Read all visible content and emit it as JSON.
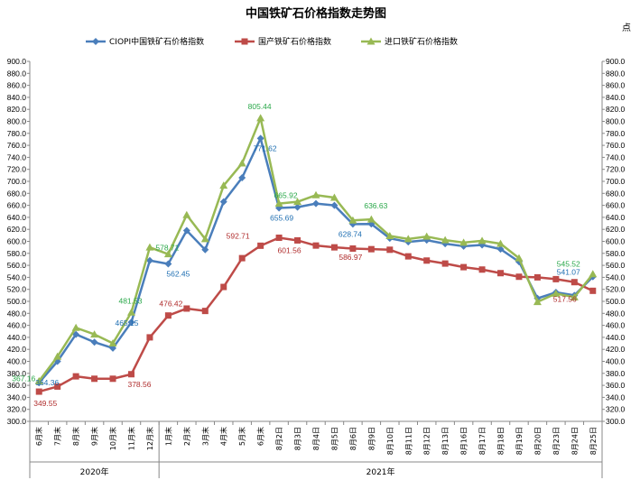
{
  "chart_data": {
    "type": "line",
    "title": "中国铁矿石价格指数走势图",
    "unit": "点",
    "ylim": [
      300,
      900
    ],
    "ytick_step": 20,
    "grid": false,
    "legend_position": "top",
    "categories": [
      "6月末",
      "7月末",
      "8月末",
      "9月末",
      "10月末",
      "11月末",
      "12月末",
      "1月末",
      "2月末",
      "3月末",
      "4月末",
      "5月末",
      "6月末",
      "8月2日",
      "8月3日",
      "8月4日",
      "8月5日",
      "8月6日",
      "8月9日",
      "8月10日",
      "8月11日",
      "8月12日",
      "8月13日",
      "8月16日",
      "8月17日",
      "8月18日",
      "8月19日",
      "8月20日",
      "8月23日",
      "8月24日",
      "8月25日"
    ],
    "year_groups": [
      {
        "label": "2020年",
        "start": 0,
        "end": 6
      },
      {
        "label": "2021年",
        "start": 7,
        "end": 30
      }
    ],
    "series": [
      {
        "name": "CIOPI中国铁矿石价格指数",
        "color": "#4a7ebb",
        "marker": "diamond",
        "values": [
          364.36,
          400,
          445,
          432,
          422,
          465.15,
          568,
          562.45,
          618,
          586,
          666,
          706,
          771.62,
          655.69,
          657,
          663,
          660,
          628.74,
          629,
          605,
          599,
          602,
          596,
          592,
          594,
          587,
          566,
          505,
          515,
          510,
          541.07
        ]
      },
      {
        "name": "国产铁矿石价格指数",
        "color": "#be4b48",
        "marker": "square",
        "values": [
          349.55,
          358,
          375,
          371,
          371,
          378.56,
          440,
          476.42,
          488,
          484,
          524,
          572,
          592.71,
          606,
          601.56,
          593,
          590,
          588,
          586.97,
          586,
          575,
          568,
          563,
          557,
          553,
          547,
          541,
          540,
          537,
          532,
          517.56
        ]
      },
      {
        "name": "进口铁矿石价格指数",
        "color": "#98b954",
        "marker": "triangle",
        "values": [
          367.16,
          408,
          456,
          445,
          430,
          481.53,
          590,
          578.71,
          644,
          604,
          693,
          730,
          805.44,
          663,
          665.92,
          677,
          673,
          635,
          636.63,
          609,
          604,
          608,
          602,
          598,
          601,
          596,
          572,
          499,
          513,
          507,
          545.52
        ]
      }
    ],
    "data_labels": [
      {
        "series": 0,
        "index": 0,
        "text": "364.36"
      },
      {
        "series": 0,
        "index": 5,
        "text": "465.15"
      },
      {
        "series": 0,
        "index": 7,
        "text": "562.45"
      },
      {
        "series": 0,
        "index": 12,
        "text": "771.62"
      },
      {
        "series": 0,
        "index": 13,
        "text": "655.69"
      },
      {
        "series": 0,
        "index": 17,
        "text": "628.74"
      },
      {
        "series": 0,
        "index": 30,
        "text": "541.07"
      },
      {
        "series": 1,
        "index": 0,
        "text": "349.55"
      },
      {
        "series": 1,
        "index": 5,
        "text": "378.56"
      },
      {
        "series": 1,
        "index": 7,
        "text": "476.42"
      },
      {
        "series": 1,
        "index": 12,
        "text": "592.71"
      },
      {
        "series": 1,
        "index": 14,
        "text": "601.56"
      },
      {
        "series": 1,
        "index": 18,
        "text": "586.97"
      },
      {
        "series": 1,
        "index": 30,
        "text": "517.56"
      },
      {
        "series": 2,
        "index": 0,
        "text": "367.16"
      },
      {
        "series": 2,
        "index": 5,
        "text": "481.53"
      },
      {
        "series": 2,
        "index": 7,
        "text": "578.71"
      },
      {
        "series": 2,
        "index": 12,
        "text": "805.44"
      },
      {
        "series": 2,
        "index": 14,
        "text": "665.92"
      },
      {
        "series": 2,
        "index": 18,
        "text": "636.63"
      },
      {
        "series": 2,
        "index": 30,
        "text": "545.52"
      }
    ]
  }
}
